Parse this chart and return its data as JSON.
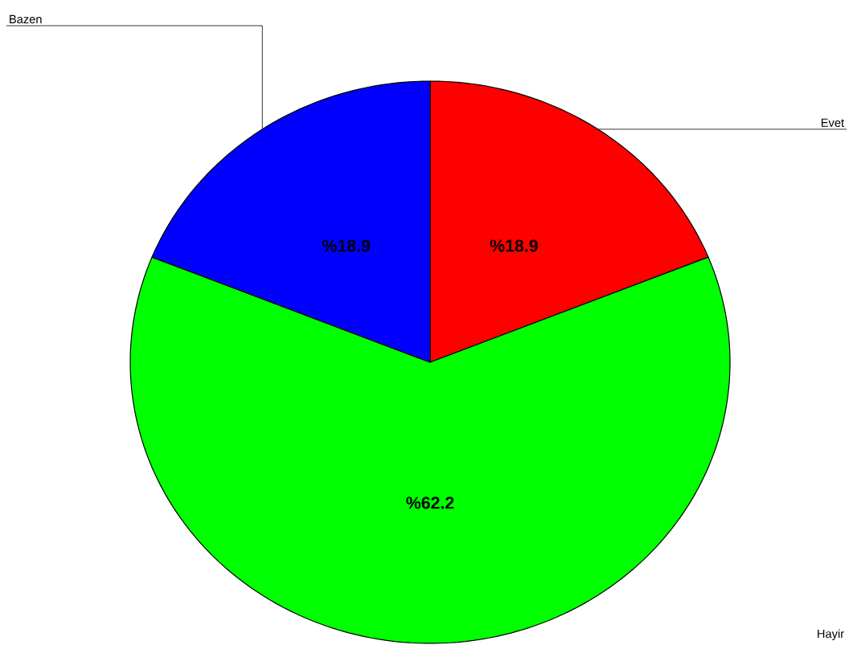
{
  "chart_data": {
    "type": "pie",
    "categories": [
      "Evet",
      "Hayir",
      "Bazen"
    ],
    "values": [
      18.9,
      62.2,
      18.9
    ],
    "colors": [
      "#ff0000",
      "#00ff00",
      "#0000ff"
    ],
    "value_labels": [
      "%18.9",
      "%62.2",
      "%18.9"
    ]
  }
}
